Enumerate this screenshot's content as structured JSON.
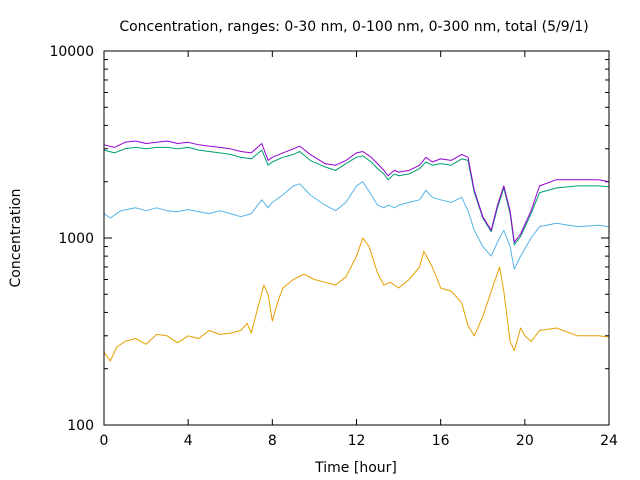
{
  "chart_data": {
    "type": "line",
    "title": "Concentration, ranges: 0-30 nm, 0-100 nm, 0-300 nm, total (5/9/1)",
    "xlabel": "Time [hour]",
    "ylabel": "Concentration",
    "xlim": [
      0,
      24
    ],
    "ylim": [
      100,
      10000
    ],
    "yscale": "log",
    "grid": false,
    "x_ticks": [
      0,
      4,
      8,
      12,
      16,
      20,
      24
    ],
    "x_tick_labels": [
      "0",
      "4",
      "8",
      "12",
      "16",
      "20",
      "24"
    ],
    "y_ticks": [
      100,
      1000,
      10000
    ],
    "y_tick_labels": [
      "100",
      "1000",
      "10000"
    ],
    "series": [
      {
        "color": "#9400d3",
        "points": [
          [
            0,
            3150
          ],
          [
            0.5,
            3050
          ],
          [
            1,
            3250
          ],
          [
            1.5,
            3300
          ],
          [
            2,
            3200
          ],
          [
            2.5,
            3250
          ],
          [
            3,
            3300
          ],
          [
            3.5,
            3200
          ],
          [
            4,
            3250
          ],
          [
            4.5,
            3150
          ],
          [
            5,
            3100
          ],
          [
            5.5,
            3050
          ],
          [
            6,
            3000
          ],
          [
            6.5,
            2900
          ],
          [
            7,
            2850
          ],
          [
            7.5,
            3200
          ],
          [
            7.8,
            2600
          ],
          [
            8,
            2700
          ],
          [
            8.5,
            2850
          ],
          [
            9,
            3000
          ],
          [
            9.3,
            3100
          ],
          [
            9.8,
            2800
          ],
          [
            10.5,
            2500
          ],
          [
            11,
            2450
          ],
          [
            11.5,
            2600
          ],
          [
            12,
            2850
          ],
          [
            12.3,
            2900
          ],
          [
            12.7,
            2700
          ],
          [
            13,
            2500
          ],
          [
            13.3,
            2300
          ],
          [
            13.5,
            2150
          ],
          [
            13.8,
            2300
          ],
          [
            14,
            2250
          ],
          [
            14.5,
            2300
          ],
          [
            15,
            2450
          ],
          [
            15.3,
            2700
          ],
          [
            15.6,
            2550
          ],
          [
            16,
            2650
          ],
          [
            16.5,
            2600
          ],
          [
            17,
            2800
          ],
          [
            17.3,
            2700
          ],
          [
            17.6,
            1800
          ],
          [
            18,
            1300
          ],
          [
            18.4,
            1100
          ],
          [
            18.7,
            1500
          ],
          [
            19,
            1900
          ],
          [
            19.3,
            1400
          ],
          [
            19.5,
            950
          ],
          [
            19.8,
            1050
          ],
          [
            20.3,
            1400
          ],
          [
            20.7,
            1900
          ],
          [
            21.5,
            2050
          ],
          [
            22.5,
            2050
          ],
          [
            23.5,
            2050
          ],
          [
            24,
            2000
          ]
        ]
      },
      {
        "color": "#009e73",
        "points": [
          [
            0,
            2950
          ],
          [
            0.5,
            2850
          ],
          [
            1,
            3000
          ],
          [
            1.5,
            3050
          ],
          [
            2,
            3000
          ],
          [
            2.5,
            3050
          ],
          [
            3,
            3050
          ],
          [
            3.5,
            3000
          ],
          [
            4,
            3050
          ],
          [
            4.5,
            2950
          ],
          [
            5,
            2900
          ],
          [
            5.5,
            2850
          ],
          [
            6,
            2800
          ],
          [
            6.5,
            2700
          ],
          [
            7,
            2650
          ],
          [
            7.5,
            2950
          ],
          [
            7.8,
            2450
          ],
          [
            8,
            2550
          ],
          [
            8.5,
            2700
          ],
          [
            9,
            2800
          ],
          [
            9.3,
            2900
          ],
          [
            9.8,
            2600
          ],
          [
            10.5,
            2400
          ],
          [
            11,
            2300
          ],
          [
            11.5,
            2500
          ],
          [
            12,
            2700
          ],
          [
            12.3,
            2750
          ],
          [
            12.7,
            2550
          ],
          [
            13,
            2350
          ],
          [
            13.3,
            2200
          ],
          [
            13.5,
            2050
          ],
          [
            13.8,
            2200
          ],
          [
            14,
            2150
          ],
          [
            14.5,
            2200
          ],
          [
            15,
            2350
          ],
          [
            15.3,
            2550
          ],
          [
            15.6,
            2450
          ],
          [
            16,
            2500
          ],
          [
            16.5,
            2450
          ],
          [
            17,
            2650
          ],
          [
            17.3,
            2600
          ],
          [
            17.6,
            1750
          ],
          [
            18,
            1280
          ],
          [
            18.4,
            1080
          ],
          [
            18.7,
            1450
          ],
          [
            19,
            1850
          ],
          [
            19.3,
            1350
          ],
          [
            19.5,
            920
          ],
          [
            19.8,
            1020
          ],
          [
            20.3,
            1350
          ],
          [
            20.7,
            1750
          ],
          [
            21.5,
            1850
          ],
          [
            22.5,
            1900
          ],
          [
            23.5,
            1900
          ],
          [
            24,
            1880
          ]
        ]
      },
      {
        "color": "#56b4e9",
        "points": [
          [
            0,
            1350
          ],
          [
            0.3,
            1280
          ],
          [
            0.8,
            1400
          ],
          [
            1.5,
            1450
          ],
          [
            2,
            1400
          ],
          [
            2.5,
            1450
          ],
          [
            3,
            1400
          ],
          [
            3.5,
            1380
          ],
          [
            4,
            1420
          ],
          [
            4.5,
            1380
          ],
          [
            5,
            1350
          ],
          [
            5.5,
            1400
          ],
          [
            6,
            1350
          ],
          [
            6.5,
            1300
          ],
          [
            7,
            1350
          ],
          [
            7.5,
            1600
          ],
          [
            7.8,
            1450
          ],
          [
            8,
            1550
          ],
          [
            8.5,
            1700
          ],
          [
            9,
            1900
          ],
          [
            9.3,
            1950
          ],
          [
            9.8,
            1700
          ],
          [
            10.5,
            1500
          ],
          [
            11,
            1400
          ],
          [
            11.5,
            1550
          ],
          [
            12,
            1900
          ],
          [
            12.3,
            2000
          ],
          [
            12.7,
            1700
          ],
          [
            13,
            1500
          ],
          [
            13.3,
            1450
          ],
          [
            13.5,
            1500
          ],
          [
            13.8,
            1450
          ],
          [
            14,
            1500
          ],
          [
            14.5,
            1550
          ],
          [
            15,
            1600
          ],
          [
            15.3,
            1800
          ],
          [
            15.6,
            1650
          ],
          [
            16,
            1600
          ],
          [
            16.5,
            1550
          ],
          [
            17,
            1650
          ],
          [
            17.3,
            1400
          ],
          [
            17.6,
            1100
          ],
          [
            18,
            900
          ],
          [
            18.4,
            800
          ],
          [
            18.7,
            950
          ],
          [
            19,
            1100
          ],
          [
            19.3,
            900
          ],
          [
            19.5,
            680
          ],
          [
            19.8,
            800
          ],
          [
            20.3,
            1000
          ],
          [
            20.7,
            1150
          ],
          [
            21.5,
            1200
          ],
          [
            22.5,
            1150
          ],
          [
            23.5,
            1170
          ],
          [
            24,
            1150
          ]
        ]
      },
      {
        "color": "#e69f00",
        "points": [
          [
            0,
            245
          ],
          [
            0.3,
            220
          ],
          [
            0.6,
            260
          ],
          [
            1,
            280
          ],
          [
            1.5,
            290
          ],
          [
            2,
            270
          ],
          [
            2.5,
            305
          ],
          [
            3,
            300
          ],
          [
            3.5,
            275
          ],
          [
            4,
            300
          ],
          [
            4.5,
            290
          ],
          [
            5,
            320
          ],
          [
            5.5,
            305
          ],
          [
            6,
            310
          ],
          [
            6.5,
            320
          ],
          [
            6.8,
            350
          ],
          [
            7,
            310
          ],
          [
            7.3,
            420
          ],
          [
            7.6,
            560
          ],
          [
            7.8,
            500
          ],
          [
            8,
            360
          ],
          [
            8.3,
            470
          ],
          [
            8.5,
            540
          ],
          [
            9,
            600
          ],
          [
            9.5,
            640
          ],
          [
            10,
            600
          ],
          [
            10.5,
            580
          ],
          [
            11,
            560
          ],
          [
            11.5,
            620
          ],
          [
            12,
            800
          ],
          [
            12.3,
            1000
          ],
          [
            12.6,
            900
          ],
          [
            13,
            650
          ],
          [
            13.3,
            560
          ],
          [
            13.6,
            580
          ],
          [
            14,
            540
          ],
          [
            14.5,
            600
          ],
          [
            15,
            700
          ],
          [
            15.2,
            850
          ],
          [
            15.6,
            700
          ],
          [
            16,
            540
          ],
          [
            16.5,
            520
          ],
          [
            17,
            450
          ],
          [
            17.3,
            340
          ],
          [
            17.6,
            300
          ],
          [
            18,
            380
          ],
          [
            18.5,
            560
          ],
          [
            18.8,
            700
          ],
          [
            19,
            520
          ],
          [
            19.3,
            280
          ],
          [
            19.5,
            250
          ],
          [
            19.8,
            330
          ],
          [
            20,
            300
          ],
          [
            20.3,
            280
          ],
          [
            20.7,
            320
          ],
          [
            21.5,
            330
          ],
          [
            22.5,
            300
          ],
          [
            23.5,
            300
          ],
          [
            24,
            295
          ]
        ]
      }
    ]
  }
}
